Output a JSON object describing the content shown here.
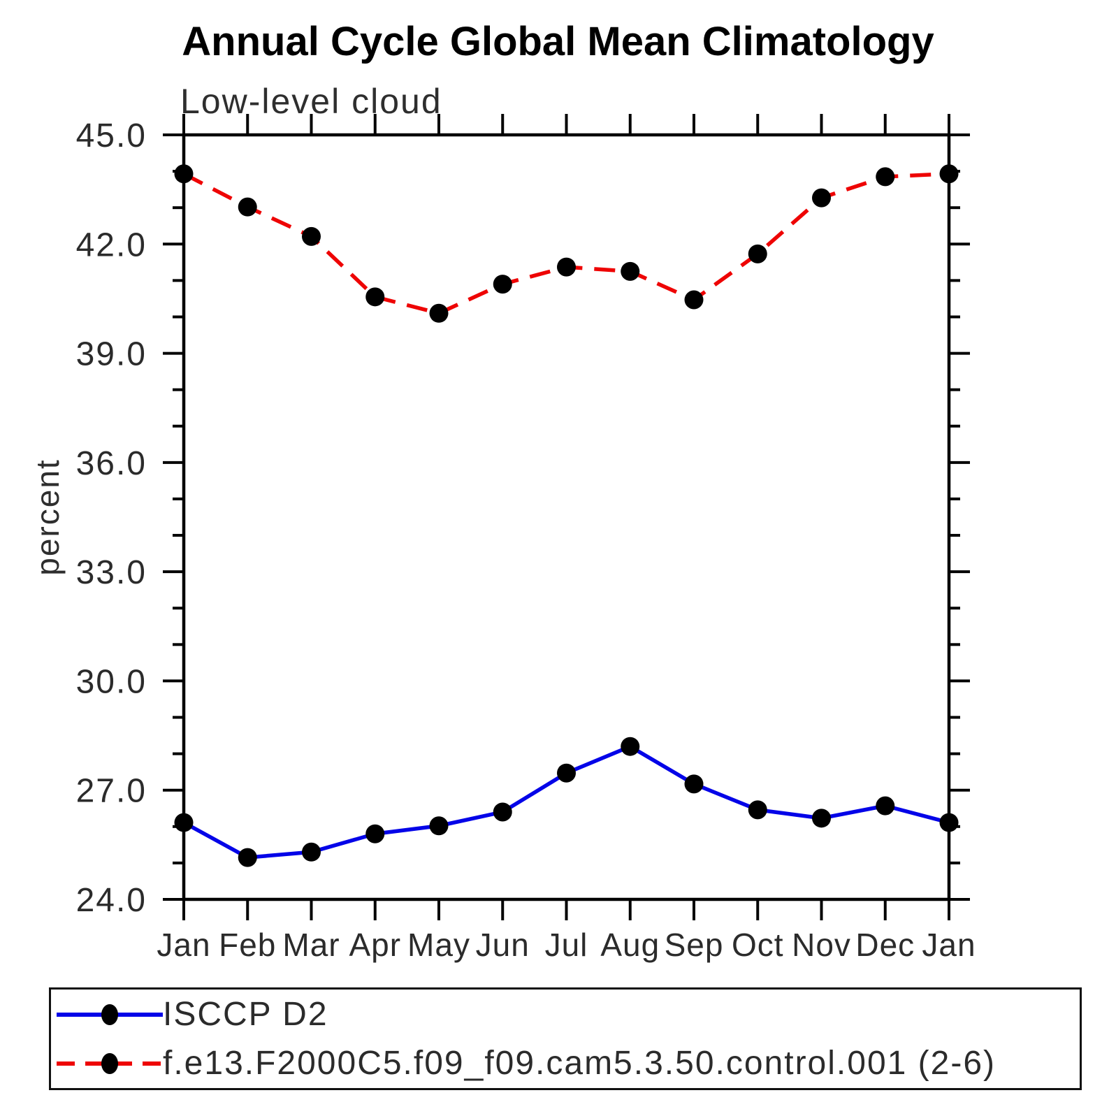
{
  "title": "Annual Cycle Global Mean Climatology",
  "subtitle": "Low-level cloud",
  "ylabel": "percent",
  "colors": {
    "background": "#ffffff",
    "axis": "#000000",
    "tick_text": "#2b2b2b",
    "title_text": "#000000",
    "marker": "#000000",
    "series_blue": "#0404e8",
    "series_red": "#ee0404"
  },
  "chart_data": {
    "type": "line",
    "title": "Annual Cycle Global Mean Climatology",
    "subtitle": "Low-level cloud",
    "xlabel": "",
    "ylabel": "percent",
    "categories": [
      "Jan",
      "Feb",
      "Mar",
      "Apr",
      "May",
      "Jun",
      "Jul",
      "Aug",
      "Sep",
      "Oct",
      "Nov",
      "Dec",
      "Jan"
    ],
    "ylim": [
      24.0,
      45.0
    ],
    "ytick_major": [
      24.0,
      27.0,
      30.0,
      33.0,
      36.0,
      39.0,
      42.0,
      45.0
    ],
    "ytick_labels": [
      "24.0",
      "27.0",
      "30.0",
      "33.0",
      "36.0",
      "39.0",
      "42.0",
      "45.0"
    ],
    "ytick_minor_step": 1.0,
    "grid": false,
    "legend_position": "bottom-left-box",
    "series": [
      {
        "name": "ISCCP D2",
        "color": "#0404e8",
        "line_style": "solid",
        "marker": "filled-circle",
        "marker_color": "#000000",
        "values": [
          26.11,
          25.15,
          25.3,
          25.8,
          26.02,
          26.4,
          27.47,
          28.2,
          27.17,
          26.46,
          26.23,
          26.57,
          26.11
        ]
      },
      {
        "name": "f.e13.F2000C5.f09_f09.cam5.3.50.control.001 (2-6)",
        "color": "#ee0404",
        "line_style": "dashed",
        "marker": "filled-circle",
        "marker_color": "#000000",
        "values": [
          43.93,
          43.02,
          42.21,
          40.55,
          40.1,
          40.9,
          41.37,
          41.25,
          40.47,
          41.73,
          43.27,
          43.85,
          43.93
        ]
      }
    ]
  }
}
